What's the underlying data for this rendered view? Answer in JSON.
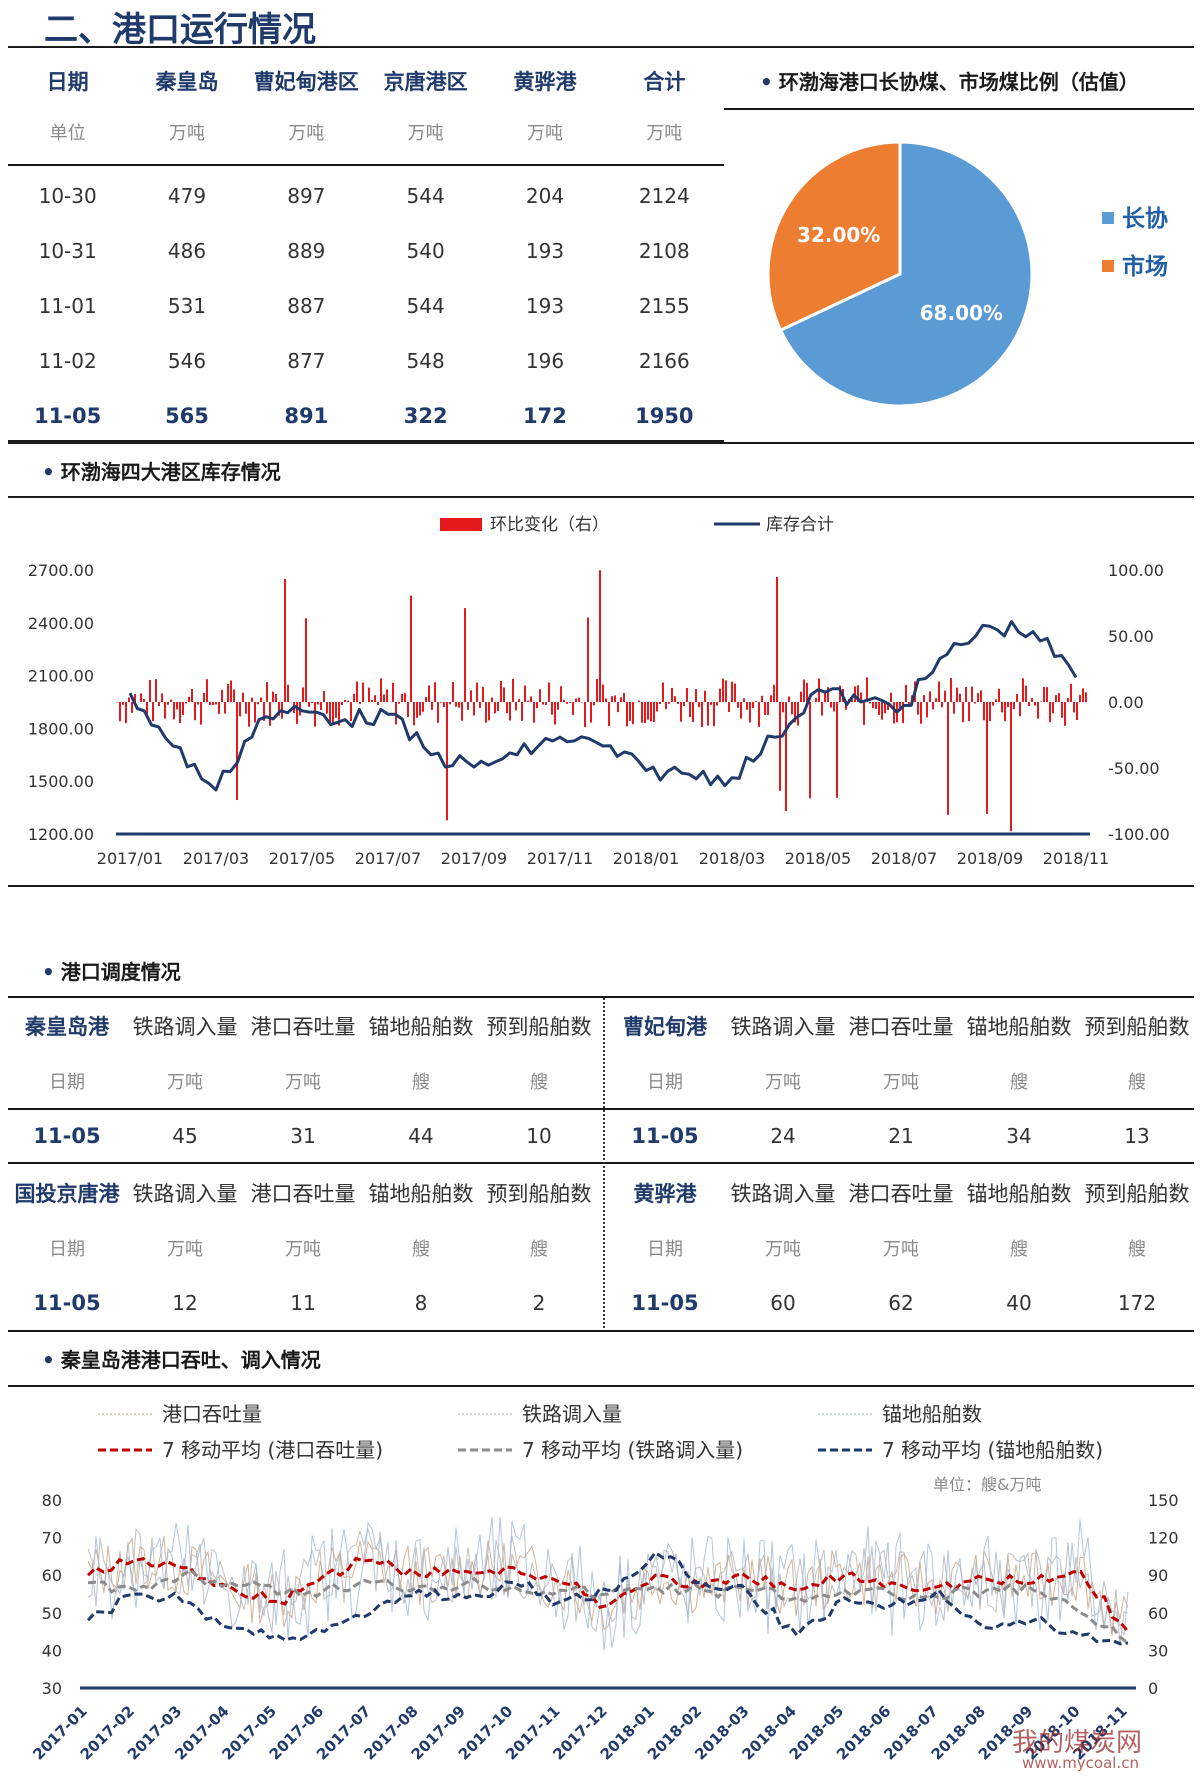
{
  "title": "二、港口运行情况",
  "port_table": {
    "headers": [
      "日期",
      "秦皇岛",
      "曹妃甸港区",
      "京唐港区",
      "黄骅港",
      "合计"
    ],
    "units": [
      "单位",
      "万吨",
      "万吨",
      "万吨",
      "万吨",
      "万吨"
    ],
    "rows": [
      [
        "10-30",
        "479",
        "897",
        "544",
        "204",
        "2124"
      ],
      [
        "10-31",
        "486",
        "889",
        "540",
        "193",
        "2108"
      ],
      [
        "11-01",
        "531",
        "887",
        "544",
        "193",
        "2155"
      ],
      [
        "11-02",
        "546",
        "877",
        "548",
        "196",
        "2166"
      ],
      [
        "11-05",
        "565",
        "891",
        "322",
        "172",
        "1950"
      ]
    ]
  },
  "pie_section": {
    "title": "环渤海港口长协煤、市场煤比例（估值）"
  },
  "inventory_section": {
    "title": "环渤海四大港区库存情况"
  },
  "dispatch_section": {
    "title": "港口调度情况"
  },
  "qhd_section": {
    "title": "秦皇岛港港口吞吐、调入情况"
  },
  "dispatch_tables": [
    {
      "port": "秦皇岛港",
      "cols": [
        "铁路调入量",
        "港口吞吐量",
        "锚地船舶数",
        "预到船舶数"
      ],
      "units": [
        "日期",
        "万吨",
        "万吨",
        "艘",
        "艘"
      ],
      "row": [
        "11-05",
        "45",
        "31",
        "44",
        "10"
      ]
    },
    {
      "port": "曹妃甸港",
      "cols": [
        "铁路调入量",
        "港口吞吐量",
        "锚地船舶数",
        "预到船舶数"
      ],
      "units": [
        "日期",
        "万吨",
        "万吨",
        "艘",
        "艘"
      ],
      "row": [
        "11-05",
        "24",
        "21",
        "34",
        "13"
      ]
    },
    {
      "port": "国投京唐港",
      "cols": [
        "铁路调入量",
        "港口吞吐量",
        "锚地船舶数",
        "预到船舶数"
      ],
      "units": [
        "日期",
        "万吨",
        "万吨",
        "艘",
        "艘"
      ],
      "row": [
        "11-05",
        "12",
        "11",
        "8",
        "2"
      ]
    },
    {
      "port": "黄骅港",
      "cols": [
        "铁路调入量",
        "港口吞吐量",
        "锚地船舶数",
        "预到船舶数"
      ],
      "units": [
        "日期",
        "万吨",
        "万吨",
        "艘",
        "艘"
      ],
      "row": [
        "11-05",
        "60",
        "62",
        "40",
        "172"
      ]
    }
  ],
  "watermark": {
    "text": "我的煤炭网",
    "url": "www.mycoal.cn"
  },
  "colors": {
    "navy": "#1f3a6b",
    "red": "#e41a1c",
    "blue": "#5b9bd5",
    "orange": "#ed7d31",
    "darkred": "#c00000",
    "gray": "#8c8c8c"
  },
  "chart_data": [
    {
      "type": "pie",
      "labels": [
        "长协",
        "市场"
      ],
      "values": [
        68.0,
        32.0
      ],
      "data_labels": [
        "68.00%",
        "32.00%"
      ],
      "colors": [
        "#5b9bd5",
        "#ed7d31"
      ],
      "legend": "right"
    },
    {
      "type": "line+bar",
      "series": [
        {
          "name": "环比变化（右）",
          "type": "bar",
          "axis": "right",
          "color": "#e41a1c"
        },
        {
          "name": "库存合计",
          "type": "line",
          "axis": "left",
          "color": "#1f3a6b",
          "x": [
            "2017/01",
            "2017/02",
            "2017/03",
            "2017/04",
            "2017/05",
            "2017/06",
            "2017/07",
            "2017/08",
            "2017/09",
            "2017/10",
            "2017/11",
            "2017/12",
            "2018/01",
            "2018/02",
            "2018/03",
            "2018/04",
            "2018/05",
            "2018/06",
            "2018/07",
            "2018/08",
            "2018/09",
            "2018/10",
            "2018/11"
          ],
          "values": [
            2000,
            1700,
            1450,
            1850,
            1900,
            1850,
            1880,
            1650,
            1580,
            1650,
            1750,
            1700,
            1560,
            1540,
            1520,
            1750,
            2020,
            1950,
            1930,
            2220,
            2380,
            2350,
            2090
          ]
        }
      ],
      "x_ticks": [
        "2017/01",
        "2017/03",
        "2017/05",
        "2017/07",
        "2017/09",
        "2017/11",
        "2018/01",
        "2018/03",
        "2018/05",
        "2018/07",
        "2018/09",
        "2018/11"
      ],
      "y_left_ticks": [
        "2700.00",
        "2400.00",
        "2100.00",
        "1800.00",
        "1500.00",
        "1200.00"
      ],
      "y_right_ticks": [
        "100.00",
        "50.00",
        "0.00",
        "-50.00",
        "-100.00"
      ],
      "ylim_left": [
        1200,
        2700
      ],
      "ylim_right": [
        -100,
        100
      ],
      "legend": "top"
    },
    {
      "type": "line",
      "unit_note": "单位：艘&万吨",
      "x_ticks": [
        "2017-01",
        "2017-02",
        "2017-03",
        "2017-04",
        "2017-05",
        "2017-06",
        "2017-07",
        "2017-08",
        "2017-09",
        "2017-10",
        "2017-11",
        "2017-12",
        "2018-01",
        "2018-02",
        "2018-03",
        "2018-04",
        "2018-05",
        "2018-06",
        "2018-07",
        "2018-08",
        "2018-09",
        "2018-10",
        "2018-11"
      ],
      "y_left_ticks": [
        "80",
        "70",
        "60",
        "50",
        "40",
        "30"
      ],
      "y_right_ticks": [
        "150",
        "120",
        "90",
        "60",
        "30",
        "0"
      ],
      "ylim_left": [
        30,
        80
      ],
      "ylim_right": [
        0,
        150
      ],
      "legend": "top",
      "series": [
        {
          "name": "港口吞吐量",
          "style": "thin",
          "color": "#c8a07a"
        },
        {
          "name": "铁路调入量",
          "style": "thin",
          "color": "#b0b0b0"
        },
        {
          "name": "锚地船舶数",
          "style": "thin",
          "color": "#9fb7d6"
        },
        {
          "name": "7 移动平均 (港口吞吐量)",
          "style": "dash",
          "color": "#c00000",
          "values": [
            60,
            64,
            62,
            57,
            53,
            60,
            64,
            60,
            61,
            62,
            58,
            52,
            60,
            57,
            59,
            56,
            60,
            58,
            57,
            59,
            58,
            61,
            45
          ]
        },
        {
          "name": "7 移动平均 (铁路调入量)",
          "style": "dash",
          "color": "#8c8c8c",
          "values": [
            58,
            56,
            60,
            58,
            55,
            56,
            58,
            57,
            58,
            57,
            56,
            55,
            57,
            56,
            56,
            54,
            56,
            55,
            54,
            56,
            56,
            50,
            42
          ]
        },
        {
          "name": "7 移动平均 (锚地船舶数)",
          "style": "dash",
          "color": "#1f3a6b",
          "values": [
            48,
            55,
            53,
            46,
            44,
            45,
            50,
            56,
            54,
            58,
            53,
            56,
            66,
            58,
            55,
            44,
            54,
            52,
            56,
            46,
            48,
            44,
            42
          ]
        }
      ]
    }
  ]
}
